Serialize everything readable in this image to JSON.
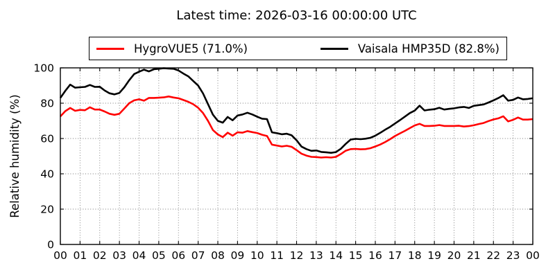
{
  "figure": {
    "background": "#ffffff"
  },
  "chart_data": {
    "type": "line",
    "title": "Latest time: 2026-03-16 00:00:00 UTC",
    "xlabel": "",
    "ylabel": "Relative humidity (%)",
    "xlim": [
      0,
      24
    ],
    "ylim": [
      0,
      100
    ],
    "grid": "dotted",
    "legend_position": "top-center",
    "x_start": 0,
    "x_step": 0.25,
    "x_unit": "hour of day (UTC)",
    "x_tick_values": [
      0,
      1,
      2,
      3,
      4,
      5,
      6,
      7,
      8,
      9,
      10,
      11,
      12,
      13,
      14,
      15,
      16,
      17,
      18,
      19,
      20,
      21,
      22,
      23,
      24
    ],
    "x_tick_labels": [
      "00",
      "01",
      "02",
      "03",
      "04",
      "05",
      "06",
      "07",
      "08",
      "09",
      "10",
      "11",
      "12",
      "13",
      "14",
      "15",
      "16",
      "17",
      "18",
      "19",
      "20",
      "21",
      "22",
      "23",
      "00"
    ],
    "y_ticks": [
      0,
      20,
      40,
      60,
      80,
      100
    ],
    "series": [
      {
        "name": "HygroVUE5",
        "legend_label": "HygroVUE5 (71.0%)",
        "color": "#ff0000",
        "latest_value_pct": 71.0,
        "values": [
          72.5,
          75.5,
          77.3,
          75.7,
          76.2,
          76.0,
          77.7,
          76.4,
          76.4,
          75.3,
          74.0,
          73.4,
          74.0,
          77.0,
          80.0,
          81.6,
          82.2,
          81.4,
          83.0,
          83.0,
          83.1,
          83.3,
          83.8,
          83.2,
          82.8,
          81.8,
          80.8,
          79.4,
          77.4,
          74.4,
          70.0,
          64.8,
          62.3,
          60.8,
          63.3,
          61.6,
          63.5,
          63.3,
          64.2,
          63.6,
          63.1,
          62.1,
          61.4,
          56.5,
          56.0,
          55.5,
          55.9,
          55.3,
          53.4,
          51.4,
          50.3,
          49.6,
          49.5,
          49.2,
          49.4,
          49.2,
          49.6,
          51.2,
          53.1,
          54.0,
          54.1,
          53.9,
          54.0,
          54.5,
          55.5,
          56.6,
          58.0,
          59.6,
          61.4,
          62.9,
          64.3,
          65.9,
          67.4,
          68.3,
          67.1,
          67.1,
          67.2,
          67.6,
          67.1,
          67.1,
          67.1,
          67.2,
          66.8,
          67.0,
          67.5,
          68.2,
          68.8,
          69.9,
          70.8,
          71.4,
          72.6,
          69.7,
          70.6,
          71.9,
          70.7,
          70.7,
          71.0
        ]
      },
      {
        "name": "Vaisala HMP35D",
        "legend_label": "Vaisala HMP35D (82.8%)",
        "color": "#000000",
        "latest_value_pct": 82.8,
        "values": [
          83.0,
          87.0,
          90.5,
          88.8,
          89.0,
          89.2,
          90.3,
          89.2,
          89.3,
          87.2,
          85.6,
          85.0,
          85.8,
          89.0,
          93.0,
          96.5,
          97.8,
          99.0,
          98.0,
          99.2,
          99.5,
          99.8,
          99.6,
          99.5,
          98.5,
          96.8,
          95.2,
          92.6,
          90.0,
          85.5,
          79.5,
          73.5,
          70.0,
          69.0,
          72.2,
          70.3,
          73.0,
          73.6,
          74.6,
          73.6,
          72.3,
          71.2,
          71.0,
          63.5,
          63.0,
          62.4,
          62.7,
          61.8,
          59.0,
          55.4,
          54.0,
          53.0,
          53.2,
          52.4,
          52.2,
          51.9,
          52.3,
          54.2,
          57.0,
          59.4,
          59.8,
          59.6,
          59.9,
          60.4,
          61.6,
          63.2,
          65.0,
          66.6,
          68.5,
          70.4,
          72.4,
          74.4,
          75.8,
          78.6,
          75.9,
          76.3,
          76.6,
          77.4,
          76.4,
          76.8,
          77.1,
          77.6,
          77.9,
          77.3,
          78.5,
          78.9,
          79.3,
          80.4,
          81.6,
          82.9,
          84.5,
          81.4,
          81.9,
          83.2,
          82.2,
          82.4,
          82.8
        ]
      }
    ]
  }
}
